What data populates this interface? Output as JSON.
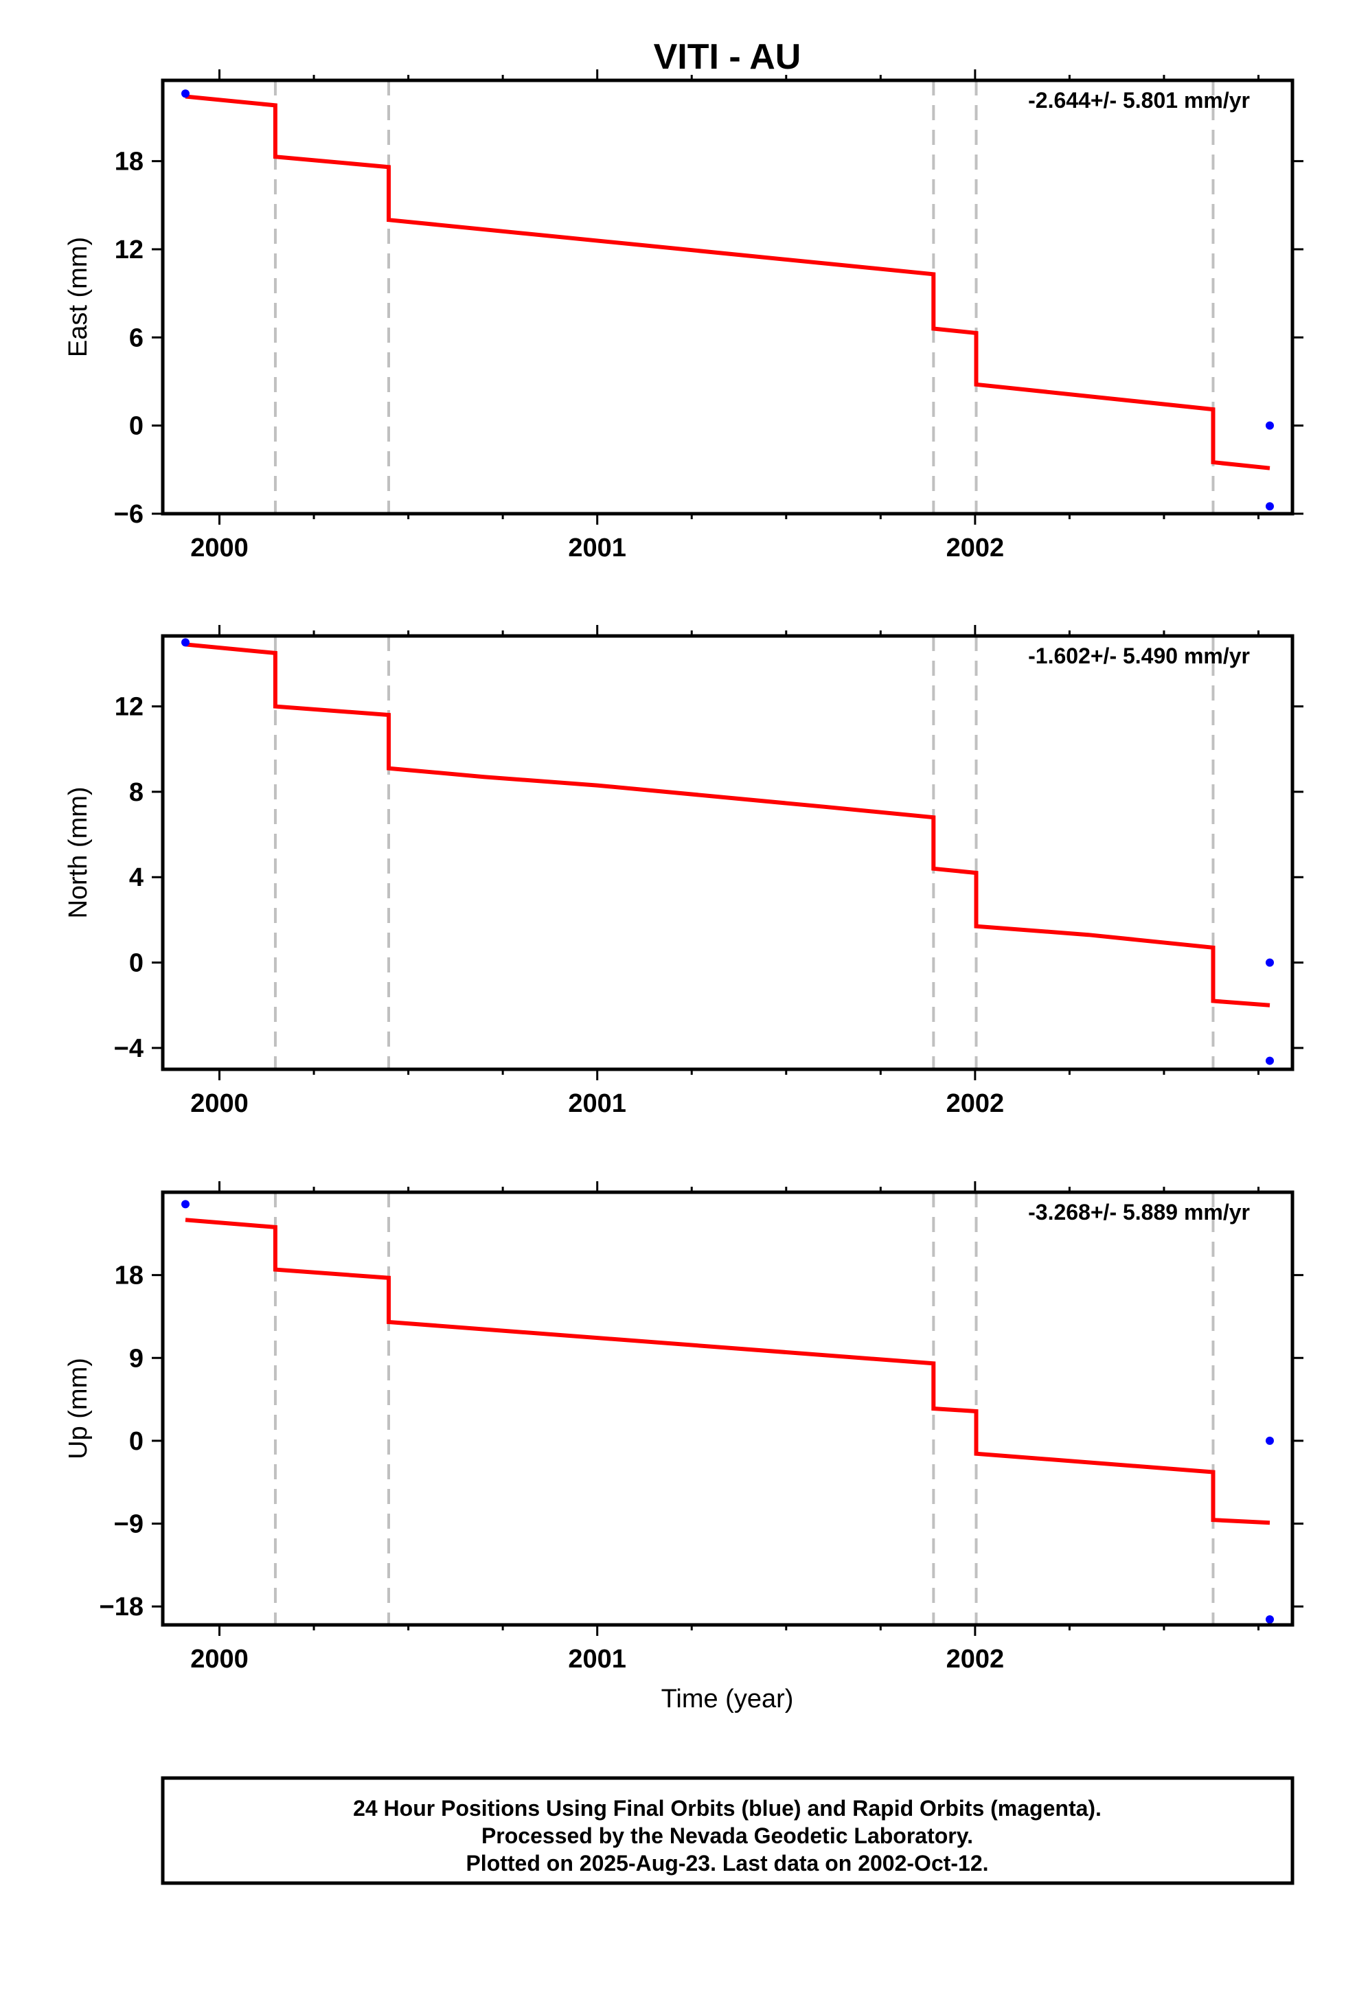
{
  "chart_data": {
    "type": "line",
    "title": "VITI - AU",
    "xlabel": "Time (year)",
    "x_ticks": [
      "2000",
      "2001",
      "2002"
    ],
    "xlim": [
      1999.85,
      2002.84
    ],
    "colors": {
      "model": "#ff0000",
      "final": "#0000ff",
      "event_line": "#c0c0c0"
    },
    "event_lines": [
      2000.148,
      2000.448,
      2001.89,
      2002.003,
      2002.63
    ],
    "panels": [
      {
        "ylabel": "East (mm)",
        "rate": "-2.644+/- 5.801 mm/yr",
        "ylim": [
          -6,
          23.5
        ],
        "y_ticks": [
          "18",
          "12",
          "6",
          "0",
          "−6"
        ],
        "y_tick_values": [
          18,
          12,
          6,
          0,
          -6
        ],
        "model": {
          "x": [
            1999.91,
            2000.148,
            2000.148,
            2000.448,
            2000.448,
            2001.89,
            2001.89,
            2002.003,
            2002.003,
            2002.63,
            2002.63,
            2002.78
          ],
          "y": [
            22.4,
            21.8,
            18.3,
            17.6,
            14.0,
            10.3,
            6.6,
            6.3,
            2.8,
            1.1,
            -2.5,
            -2.9
          ]
        },
        "final_points": [
          {
            "x": 1999.91,
            "y": 22.6
          },
          {
            "x": 2002.78,
            "y": 0.0
          },
          {
            "x": 2002.78,
            "y": -5.5
          }
        ]
      },
      {
        "ylabel": "North (mm)",
        "rate": "-1.602+/- 5.490 mm/yr",
        "ylim": [
          -5,
          15.3
        ],
        "y_ticks": [
          "12",
          "8",
          "4",
          "0",
          "−4"
        ],
        "y_tick_values": [
          12,
          8,
          4,
          0,
          -4
        ],
        "model": {
          "x": [
            1999.91,
            2000.148,
            2000.148,
            2000.448,
            2000.448,
            2000.7,
            2001.0,
            2001.3,
            2001.6,
            2001.89,
            2001.89,
            2002.003,
            2002.003,
            2002.3,
            2002.63,
            2002.63,
            2002.78
          ],
          "y": [
            14.9,
            14.5,
            12.0,
            11.6,
            9.1,
            8.7,
            8.3,
            7.8,
            7.3,
            6.8,
            4.4,
            4.2,
            1.7,
            1.3,
            0.7,
            -1.8,
            -2.0
          ]
        },
        "final_points": [
          {
            "x": 1999.91,
            "y": 15.0
          },
          {
            "x": 2002.78,
            "y": 0.0
          },
          {
            "x": 2002.78,
            "y": -4.6
          }
        ]
      },
      {
        "ylabel": "Up (mm)",
        "rate": "-3.268+/- 5.889 mm/yr",
        "ylim": [
          -20,
          27
        ],
        "y_ticks": [
          "18",
          "9",
          "0",
          "−9",
          "−18"
        ],
        "y_tick_values": [
          18,
          9,
          0,
          -9,
          -18
        ],
        "model": {
          "x": [
            1999.91,
            2000.148,
            2000.148,
            2000.448,
            2000.448,
            2001.89,
            2001.89,
            2002.003,
            2002.003,
            2002.63,
            2002.63,
            2002.78
          ],
          "y": [
            24.0,
            23.2,
            18.6,
            17.7,
            12.9,
            8.4,
            3.5,
            3.2,
            -1.4,
            -3.4,
            -8.6,
            -8.9
          ]
        },
        "final_points": [
          {
            "x": 1999.91,
            "y": 25.7
          },
          {
            "x": 2002.78,
            "y": 0.0
          },
          {
            "x": 2002.78,
            "y": -19.4
          }
        ]
      }
    ],
    "footer": [
      "24 Hour Positions Using Final Orbits (blue) and Rapid Orbits (magenta).",
      "Processed by the Nevada Geodetic Laboratory.",
      "Plotted on 2025-Aug-23. Last data on 2002-Oct-12."
    ]
  }
}
